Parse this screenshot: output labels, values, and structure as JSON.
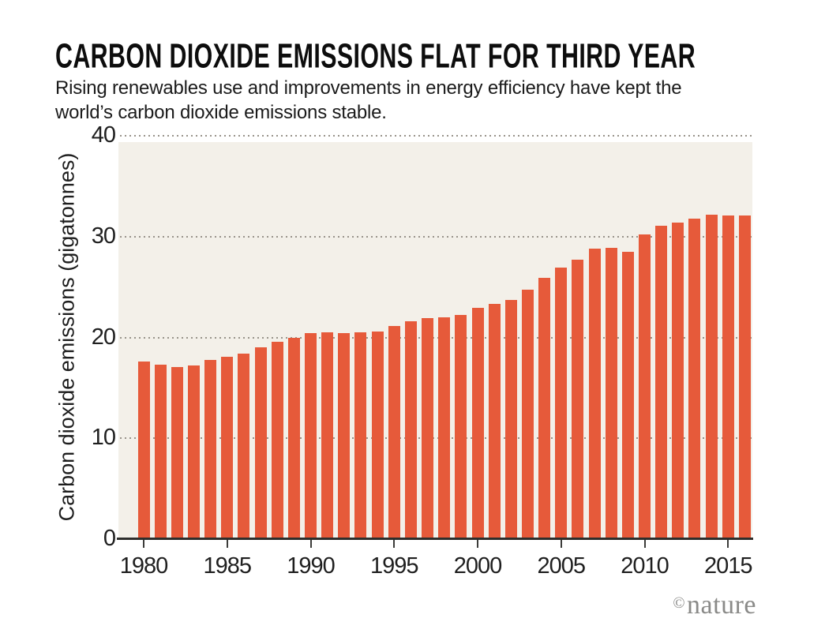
{
  "chart_data": {
    "type": "bar",
    "title": "CARBON DIOXIDE EMISSIONS FLAT FOR THIRD YEAR",
    "subtitle": "Rising renewables use and improvements in energy efficiency have kept the world’s carbon dioxide emissions stable.",
    "ylabel": "Carbon dioxide emissions (gigatonnes)",
    "xlabel": "",
    "ylim": [
      0,
      40
    ],
    "yticks": [
      0,
      10,
      20,
      30,
      40
    ],
    "xtick_years": [
      1980,
      1985,
      1990,
      1995,
      2000,
      2005,
      2010,
      2015
    ],
    "grid": "horizontal dotted",
    "legend": "none",
    "bar_color": "#e65a3a",
    "plot_bg_color": "#f3f0e9",
    "categories": [
      1980,
      1981,
      1982,
      1983,
      1984,
      1985,
      1986,
      1987,
      1988,
      1989,
      1990,
      1991,
      1992,
      1993,
      1994,
      1995,
      1996,
      1997,
      1998,
      1999,
      2000,
      2001,
      2002,
      2003,
      2004,
      2005,
      2006,
      2007,
      2008,
      2009,
      2010,
      2011,
      2012,
      2013,
      2014,
      2015,
      2016
    ],
    "values": [
      17.6,
      17.3,
      17.1,
      17.2,
      17.8,
      18.1,
      18.4,
      19.0,
      19.6,
      20.0,
      20.4,
      20.5,
      20.4,
      20.5,
      20.6,
      21.1,
      21.6,
      21.9,
      22.0,
      22.2,
      22.9,
      23.3,
      23.7,
      24.7,
      25.9,
      26.9,
      27.7,
      28.8,
      28.9,
      28.5,
      30.2,
      31.1,
      31.4,
      31.8,
      32.2,
      32.1,
      32.1
    ]
  },
  "footer": {
    "copyright_symbol": "©",
    "brand": "nature"
  }
}
